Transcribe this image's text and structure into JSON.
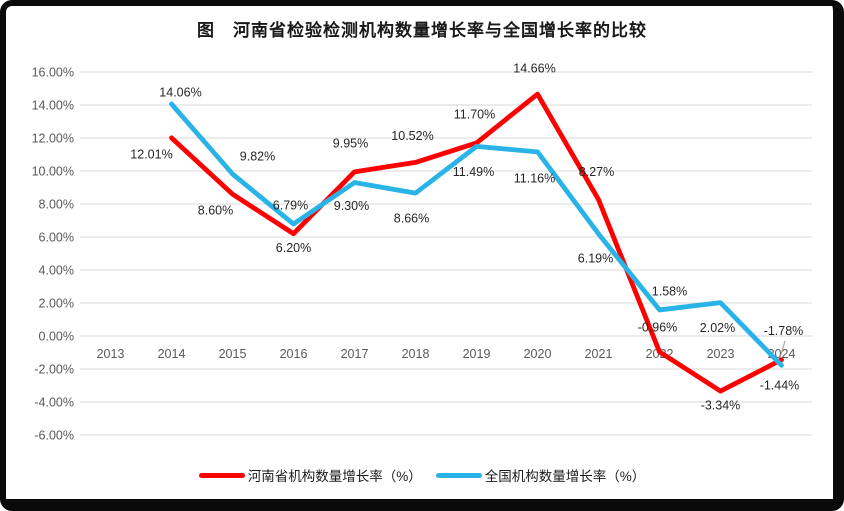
{
  "title": "图　河南省检验检测机构数量增长率与全国增长率的比较",
  "chart_data": {
    "type": "line",
    "categories": [
      "2013",
      "2014",
      "2015",
      "2016",
      "2017",
      "2018",
      "2019",
      "2020",
      "2021",
      "2022",
      "2023",
      "2024"
    ],
    "series": [
      {
        "name": "河南省机构数量增长率（%）",
        "color": "#fe0000",
        "values": [
          null,
          12.01,
          8.6,
          6.2,
          9.95,
          10.52,
          11.7,
          14.66,
          8.27,
          -0.96,
          -3.34,
          -1.44
        ],
        "labels": [
          "",
          "12.01%",
          "8.60%",
          "6.20%",
          "9.95%",
          "10.52%",
          "11.70%",
          "14.66%",
          "8.27%",
          "-0.96%",
          "-3.34%",
          "-1.44%"
        ]
      },
      {
        "name": "全国机构数量增长率（%）",
        "color": "#29b3e6",
        "values": [
          null,
          14.06,
          9.82,
          6.79,
          9.3,
          8.66,
          11.49,
          11.16,
          6.19,
          1.58,
          2.02,
          -1.78
        ],
        "labels": [
          "",
          "14.06%",
          "9.82%",
          "6.79%",
          "9.30%",
          "8.66%",
          "11.49%",
          "11.16%",
          "6.19%",
          "1.58%",
          "2.02%",
          "-1.78%"
        ]
      }
    ],
    "ylim": [
      -6,
      16
    ],
    "ytick_step": 2,
    "yticks": [
      "16.00%",
      "14.00%",
      "12.00%",
      "10.00%",
      "8.00%",
      "6.00%",
      "4.00%",
      "2.00%",
      "0.00%",
      "-2.00%",
      "-4.00%",
      "-6.00%"
    ],
    "grid": true,
    "legend_position": "bottom"
  },
  "colors": {
    "grid": "#d9d9d9",
    "tick_text": "#595959",
    "data_label_text": "#262626",
    "leader_line": "#a6a6a6",
    "frame": "#0a0a0a",
    "background": "#ffffff"
  }
}
